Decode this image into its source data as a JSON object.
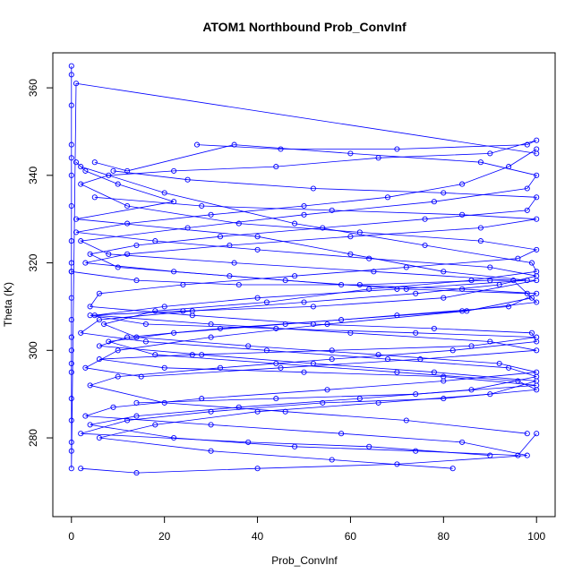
{
  "chart_data": {
    "type": "line",
    "title": "ATOM1 Northbound Prob_ConvInf",
    "xlabel": "Prob_ConvInf",
    "ylabel": "Theta (K)",
    "xlim": [
      -4,
      104
    ],
    "ylim": [
      262,
      368
    ],
    "xticks": [
      0,
      20,
      40,
      60,
      80,
      100
    ],
    "yticks": [
      280,
      300,
      320,
      340,
      360
    ],
    "grid": false,
    "legend": "none",
    "series_color": "#0000ff",
    "marker": "open-circle",
    "series": [
      {
        "points": [
          [
            0,
            365
          ],
          [
            0,
            363
          ],
          [
            0,
            356
          ],
          [
            0,
            347
          ],
          [
            0,
            344
          ],
          [
            0,
            340
          ],
          [
            0,
            333
          ],
          [
            0,
            325
          ],
          [
            0,
            320
          ],
          [
            0,
            318
          ],
          [
            0,
            312
          ],
          [
            0,
            307
          ],
          [
            0,
            303
          ],
          [
            0,
            300
          ],
          [
            0,
            297
          ],
          [
            0,
            295
          ],
          [
            0,
            289
          ],
          [
            0,
            284
          ],
          [
            0,
            279
          ],
          [
            0,
            277
          ],
          [
            0,
            273
          ],
          [
            1,
            361
          ],
          [
            100,
            345
          ]
        ]
      },
      {
        "points": [
          [
            1,
            343
          ],
          [
            3,
            341
          ],
          [
            10,
            338
          ],
          [
            22,
            334
          ],
          [
            1,
            330
          ],
          [
            40,
            326
          ],
          [
            60,
            322
          ],
          [
            80,
            318
          ],
          [
            98,
            316
          ],
          [
            70,
            314
          ],
          [
            40,
            312
          ],
          [
            20,
            310
          ],
          [
            5,
            308
          ],
          [
            30,
            306
          ],
          [
            60,
            304
          ],
          [
            90,
            302
          ],
          [
            100,
            300
          ],
          [
            75,
            298
          ],
          [
            45,
            296
          ],
          [
            15,
            294
          ],
          [
            3,
            296
          ],
          [
            10,
            300
          ],
          [
            30,
            303
          ],
          [
            55,
            306
          ],
          [
            85,
            309
          ],
          [
            99,
            312
          ],
          [
            95,
            316
          ],
          [
            65,
            318
          ],
          [
            35,
            320
          ],
          [
            8,
            322
          ],
          [
            2,
            325
          ],
          [
            25,
            328
          ],
          [
            50,
            331
          ],
          [
            78,
            334
          ],
          [
            98,
            337
          ],
          [
            100,
            340
          ],
          [
            88,
            343
          ],
          [
            60,
            345
          ],
          [
            35,
            347
          ],
          [
            12,
            341
          ],
          [
            5,
            343
          ]
        ]
      },
      {
        "points": [
          [
            2,
            342
          ],
          [
            20,
            336
          ],
          [
            48,
            329
          ],
          [
            76,
            324
          ],
          [
            99,
            320
          ],
          [
            100,
            318
          ],
          [
            86,
            316
          ],
          [
            64,
            314
          ],
          [
            42,
            311
          ],
          [
            18,
            309
          ],
          [
            7,
            306
          ],
          [
            14,
            303
          ],
          [
            38,
            301
          ],
          [
            66,
            299
          ],
          [
            92,
            297
          ],
          [
            100,
            295
          ],
          [
            80,
            293
          ],
          [
            55,
            291
          ],
          [
            28,
            289
          ],
          [
            9,
            287
          ],
          [
            3,
            285
          ],
          [
            30,
            283
          ],
          [
            58,
            281
          ],
          [
            84,
            279
          ],
          [
            98,
            276
          ],
          [
            70,
            274
          ],
          [
            40,
            273
          ],
          [
            14,
            272
          ],
          [
            2,
            273
          ]
        ]
      },
      {
        "points": [
          [
            27,
            347
          ],
          [
            45,
            346
          ],
          [
            70,
            346
          ],
          [
            98,
            347
          ],
          [
            100,
            348
          ],
          [
            90,
            345
          ],
          [
            66,
            344
          ],
          [
            44,
            342
          ],
          [
            22,
            341
          ],
          [
            8,
            340
          ],
          [
            2,
            338
          ],
          [
            12,
            333
          ],
          [
            36,
            329
          ],
          [
            62,
            327
          ],
          [
            88,
            325
          ],
          [
            100,
            323
          ],
          [
            96,
            321
          ],
          [
            72,
            319
          ],
          [
            48,
            317
          ],
          [
            24,
            315
          ],
          [
            6,
            313
          ],
          [
            4,
            310
          ],
          [
            26,
            308
          ],
          [
            52,
            306
          ],
          [
            78,
            305
          ],
          [
            99,
            304
          ],
          [
            100,
            302
          ],
          [
            82,
            300
          ],
          [
            56,
            298
          ],
          [
            32,
            296
          ],
          [
            10,
            294
          ],
          [
            4,
            292
          ],
          [
            20,
            288
          ],
          [
            46,
            286
          ],
          [
            72,
            284
          ],
          [
            98,
            281
          ]
        ]
      },
      {
        "points": [
          [
            100,
            346
          ],
          [
            94,
            342
          ],
          [
            84,
            338
          ],
          [
            68,
            335
          ],
          [
            50,
            333
          ],
          [
            30,
            331
          ],
          [
            12,
            329
          ],
          [
            1,
            327
          ],
          [
            18,
            325
          ],
          [
            40,
            323
          ],
          [
            64,
            321
          ],
          [
            90,
            319
          ],
          [
            100,
            317
          ],
          [
            92,
            315
          ],
          [
            74,
            313
          ],
          [
            50,
            311
          ],
          [
            26,
            309
          ],
          [
            6,
            307
          ],
          [
            2,
            304
          ],
          [
            16,
            302
          ],
          [
            42,
            300
          ],
          [
            68,
            298
          ],
          [
            94,
            296
          ],
          [
            100,
            294
          ],
          [
            86,
            291
          ],
          [
            62,
            289
          ],
          [
            36,
            287
          ],
          [
            14,
            285
          ],
          [
            4,
            283
          ],
          [
            22,
            280
          ],
          [
            48,
            278
          ],
          [
            74,
            277
          ],
          [
            96,
            276
          ],
          [
            100,
            281
          ]
        ]
      },
      {
        "points": [
          [
            9,
            341
          ],
          [
            25,
            339
          ],
          [
            52,
            337
          ],
          [
            80,
            336
          ],
          [
            100,
            335
          ],
          [
            98,
            332
          ],
          [
            76,
            330
          ],
          [
            54,
            328
          ],
          [
            32,
            326
          ],
          [
            14,
            324
          ],
          [
            4,
            322
          ],
          [
            10,
            319
          ],
          [
            34,
            317
          ],
          [
            58,
            315
          ],
          [
            84,
            314
          ],
          [
            100,
            313
          ],
          [
            94,
            310
          ],
          [
            70,
            308
          ],
          [
            46,
            306
          ],
          [
            22,
            304
          ],
          [
            8,
            302
          ],
          [
            18,
            299
          ],
          [
            44,
            297
          ],
          [
            70,
            295
          ],
          [
            96,
            293
          ],
          [
            100,
            291
          ],
          [
            80,
            289
          ],
          [
            54,
            288
          ],
          [
            30,
            286
          ],
          [
            12,
            284
          ],
          [
            2,
            281
          ],
          [
            38,
            279
          ],
          [
            64,
            278
          ],
          [
            90,
            276
          ]
        ]
      },
      {
        "points": [
          [
            5,
            335
          ],
          [
            28,
            333
          ],
          [
            56,
            332
          ],
          [
            84,
            331
          ],
          [
            100,
            330
          ],
          [
            88,
            328
          ],
          [
            60,
            326
          ],
          [
            34,
            324
          ],
          [
            12,
            322
          ],
          [
            3,
            320
          ],
          [
            22,
            318
          ],
          [
            46,
            316
          ],
          [
            72,
            314
          ],
          [
            98,
            313
          ],
          [
            100,
            311
          ],
          [
            84,
            309
          ],
          [
            58,
            307
          ],
          [
            32,
            305
          ],
          [
            12,
            303
          ],
          [
            6,
            301
          ],
          [
            28,
            299
          ],
          [
            52,
            297
          ],
          [
            78,
            295
          ],
          [
            100,
            293
          ],
          [
            90,
            290
          ],
          [
            66,
            288
          ],
          [
            40,
            286
          ],
          [
            18,
            283
          ],
          [
            6,
            280
          ],
          [
            30,
            277
          ],
          [
            56,
            275
          ],
          [
            82,
            273
          ]
        ]
      },
      {
        "points": [
          [
            0,
            318
          ],
          [
            14,
            316
          ],
          [
            36,
            315
          ],
          [
            62,
            315
          ],
          [
            90,
            316
          ],
          [
            100,
            316
          ],
          [
            80,
            312
          ],
          [
            52,
            310
          ],
          [
            24,
            309
          ],
          [
            4,
            308
          ],
          [
            16,
            306
          ],
          [
            44,
            305
          ],
          [
            74,
            304
          ],
          [
            100,
            303
          ],
          [
            86,
            301
          ],
          [
            56,
            300
          ],
          [
            26,
            299
          ],
          [
            6,
            298
          ],
          [
            20,
            296
          ],
          [
            50,
            295
          ],
          [
            80,
            294
          ],
          [
            100,
            292
          ],
          [
            74,
            290
          ],
          [
            44,
            289
          ],
          [
            14,
            288
          ]
        ]
      }
    ]
  }
}
